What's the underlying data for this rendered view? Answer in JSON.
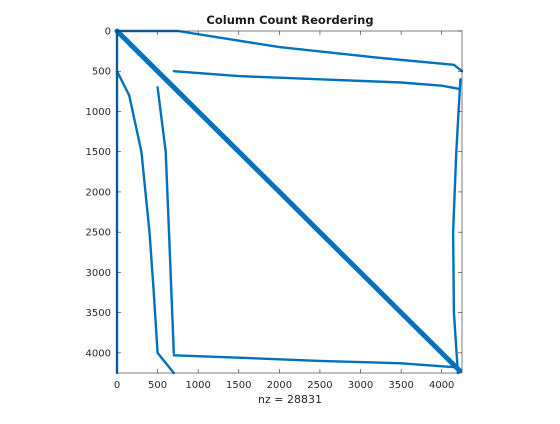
{
  "chart_data": {
    "type": "scatter",
    "title": "Column Count Reordering",
    "xlabel": "nz = 28831",
    "ylabel": "",
    "xlim": [
      0,
      4250
    ],
    "ylim": [
      0,
      4250
    ],
    "y_reversed": true,
    "x_ticks": [
      "0",
      "500",
      "1000",
      "1500",
      "2000",
      "2500",
      "3000",
      "3500",
      "4000"
    ],
    "y_ticks": [
      "0",
      "500",
      "1000",
      "1500",
      "2000",
      "2500",
      "3000",
      "3500",
      "4000"
    ],
    "grid": false,
    "marker_color": "#0072BD",
    "series": [
      {
        "values": [
          [
            0,
            0
          ],
          [
            600,
            600
          ],
          [
            700,
            700
          ],
          [
            1000,
            1000
          ],
          [
            1500,
            1500
          ],
          [
            2000,
            2000
          ],
          [
            2500,
            2500
          ],
          [
            3000,
            3000
          ],
          [
            3500,
            3500
          ],
          [
            4000,
            4000
          ],
          [
            4220,
            4220
          ]
        ]
      },
      {
        "values": [
          [
            0,
            0
          ],
          [
            750,
            0
          ],
          [
            2000,
            200
          ],
          [
            3200,
            330
          ],
          [
            4150,
            420
          ],
          [
            4250,
            500
          ]
        ]
      },
      {
        "values": [
          [
            700,
            500
          ],
          [
            1500,
            560
          ],
          [
            2500,
            600
          ],
          [
            3500,
            640
          ],
          [
            4000,
            680
          ],
          [
            4220,
            720
          ]
        ]
      },
      {
        "values": [
          [
            0,
            500
          ],
          [
            150,
            800
          ],
          [
            300,
            1500
          ],
          [
            400,
            2500
          ],
          [
            450,
            3200
          ],
          [
            500,
            4000
          ],
          [
            700,
            4250
          ]
        ]
      },
      {
        "values": [
          [
            500,
            700
          ],
          [
            600,
            1500
          ],
          [
            640,
            2500
          ],
          [
            680,
            3500
          ],
          [
            700,
            4000
          ]
        ]
      },
      {
        "values": [
          [
            4230,
            600
          ],
          [
            4180,
            1500
          ],
          [
            4140,
            2500
          ],
          [
            4150,
            3500
          ],
          [
            4200,
            4250
          ]
        ]
      },
      {
        "values": [
          [
            700,
            4030
          ],
          [
            1500,
            4060
          ],
          [
            2500,
            4100
          ],
          [
            3500,
            4130
          ],
          [
            4200,
            4180
          ]
        ]
      },
      {
        "values": [
          [
            0,
            0
          ],
          [
            0,
            1500
          ],
          [
            0,
            2800
          ],
          [
            0,
            4250
          ]
        ]
      }
    ]
  }
}
